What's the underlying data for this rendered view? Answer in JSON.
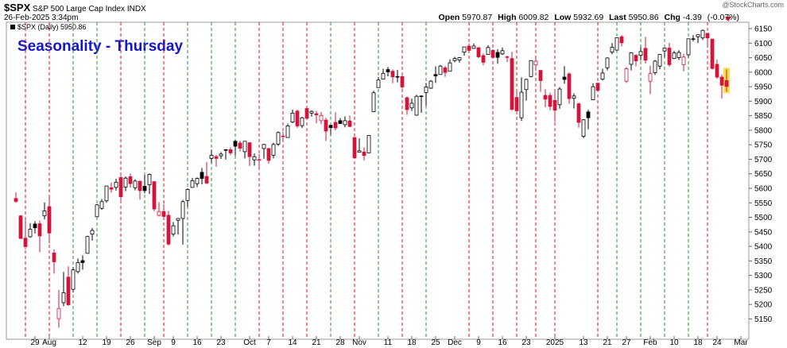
{
  "chart_data": {
    "type": "candlestick",
    "symbol": "$SPX",
    "name": "S&P 500 Large Cap Index",
    "exchange": "INDX",
    "date": "26-Feb-2025 3:34pm",
    "stats": [
      {
        "label": "Open",
        "value": 5970.87
      },
      {
        "label": "High",
        "value": 6009.82
      },
      {
        "label": "Low",
        "value": 5932.69
      },
      {
        "label": "Last",
        "value": 5950.86
      },
      {
        "label": "Chg",
        "value": -4.39
      }
    ],
    "change_pct": "(-0.07%)",
    "watermark": "@StockCharts.com",
    "legend_label": "$SPX (Daily) 5950.86",
    "title": "Seasonality - Thursday",
    "up_color": "#000000",
    "down_color": "#d2153c",
    "thursday_up_color": "#1f9a1f",
    "thursday_down_color": "#e01010",
    "grid": false,
    "categories": [
      null,
      null,
      null,
      null,
      "29",
      null,
      null,
      "Aug",
      null,
      null,
      null,
      null,
      null,
      null,
      "12",
      null,
      null,
      null,
      null,
      "19",
      null,
      null,
      null,
      null,
      "26",
      null,
      null,
      null,
      null,
      "Sep",
      null,
      null,
      null,
      "9",
      null,
      null,
      null,
      null,
      "16",
      null,
      null,
      null,
      null,
      "23",
      null,
      null,
      null,
      null,
      null,
      "Oct",
      null,
      null,
      null,
      "7",
      null,
      null,
      null,
      null,
      "14",
      null,
      null,
      null,
      null,
      "21",
      null,
      null,
      null,
      null,
      "28",
      null,
      null,
      null,
      "Nov",
      null,
      null,
      null,
      null,
      null,
      "11",
      null,
      null,
      null,
      null,
      "18",
      null,
      null,
      null,
      null,
      "25",
      null,
      null,
      null,
      "Dec",
      null,
      null,
      null,
      null,
      "9",
      null,
      null,
      null,
      null,
      "16",
      null,
      null,
      null,
      null,
      "23",
      null,
      null,
      null,
      null,
      null,
      "2025",
      null,
      null,
      null,
      null,
      null,
      "13",
      null,
      null,
      null,
      null,
      "21",
      null,
      null,
      null,
      "27",
      null,
      null,
      null,
      null,
      "Feb",
      null,
      null,
      null,
      null,
      "10",
      null,
      null,
      null,
      null,
      "18",
      null,
      null,
      null,
      "24",
      null,
      null,
      null,
      null,
      "Mar"
    ],
    "open": [
      5565,
      5505,
      5428,
      5433,
      5477,
      5478,
      5505,
      5537,
      5377,
      5151,
      5206,
      5294,
      5252,
      5313,
      5351,
      5376,
      5442,
      5502,
      5531,
      5557,
      5602,
      5603,
      5637,
      5604,
      5640,
      5602,
      5624,
      5607,
      5612,
      5623,
      5507,
      5520,
      5507,
      5442,
      5490,
      5496,
      5558,
      5603,
      5616,
      5655,
      5641,
      5703,
      5709,
      5712,
      5733,
      5733,
      5762,
      5756,
      5726,
      5757,
      5698,
      5698,
      5737,
      5737,
      5714,
      5752,
      5779,
      5775,
      5828,
      5866,
      5816,
      5875,
      5859,
      5857,
      5833,
      5835,
      5817,
      5827,
      5833,
      5819,
      5832,
      5775,
      5724,
      5725,
      5722,
      5864,
      5947,
      5976,
      6009,
      6003,
      5985,
      5985,
      5912,
      5877,
      5852,
      5918,
      5930,
      5945,
      5992,
      5992,
      6015,
      6003,
      6040,
      6042,
      6069,
      6090,
      6082,
      6084,
      6057,
      6061,
      6075,
      6068,
      6063,
      6053,
      6047,
      5913,
      5843,
      5940,
      5985,
      6025,
      6006,
      5920,
      5920,
      5903,
      5888,
      5983,
      5994,
      5910,
      5891,
      5779,
      5863,
      5905,
      5962,
      5976,
      6015,
      6069,
      6076,
      6122,
      5969,
      6027,
      6058,
      6058,
      6082,
      5969,
      5998,
      6021,
      6073,
      6083,
      6047,
      6050,
      6026,
      6060,
      6115,
      6122,
      6118,
      6134,
      6114,
      6027,
      5983,
      5970.87,
      null,
      null,
      null
    ],
    "high": [
      5586,
      5508,
      5492,
      5480,
      5487,
      5489,
      5551,
      5567,
      5390,
      5250,
      5312,
      5331,
      5328,
      5358,
      5369,
      5436,
      5463,
      5546,
      5563,
      5608,
      5620,
      5633,
      5643,
      5641,
      5651,
      5631,
      5627,
      5646,
      5651,
      5623,
      5552,
      5546,
      5522,
      5484,
      5497,
      5560,
      5600,
      5636,
      5637,
      5670,
      5690,
      5733,
      5715,
      5725,
      5735,
      5741,
      5767,
      5764,
      5763,
      5758,
      5720,
      5718,
      5753,
      5739,
      5757,
      5796,
      5795,
      5823,
      5871,
      5871,
      5846,
      5878,
      5869,
      5867,
      5863,
      5843,
      5817,
      5862,
      5842,
      5848,
      5850,
      5775,
      5772,
      5741,
      5783,
      5936,
      5983,
      6012,
      6018,
      6010,
      6008,
      5992,
      5916,
      5909,
      5922,
      5920,
      5963,
      5973,
      6020,
      6025,
      6021,
      6044,
      6053,
      6052,
      6087,
      6099,
      6099,
      6088,
      6065,
      6093,
      6079,
      6079,
      6085,
      6057,
      6070,
      5935,
      5982,
      5978,
      6041,
      6050,
      6007,
      5941,
      5929,
      5935,
      5949,
      6021,
      6000,
      5927,
      5896,
      5838,
      5871,
      5961,
      5964,
      6012,
      6051,
      6100,
      6119,
      6128,
      6018,
      6069,
      6062,
      6086,
      6121,
      6022,
      6042,
      6062,
      6084,
      6101,
      6073,
      6076,
      6063,
      6116,
      6128,
      6130,
      6147,
      6134,
      6115,
      6043,
      5992,
      6009.82,
      null,
      null,
      null
    ],
    "low": [
      5550,
      5426,
      5390,
      5430,
      5444,
      5380,
      5493,
      5410,
      5306,
      5120,
      5194,
      5195,
      5241,
      5306,
      5320,
      5376,
      5420,
      5501,
      5526,
      5550,
      5585,
      5592,
      5560,
      5590,
      5602,
      5593,
      5561,
      5583,
      5581,
      5521,
      5503,
      5493,
      5403,
      5434,
      5441,
      5406,
      5536,
      5602,
      5604,
      5614,
      5615,
      5687,
      5674,
      5701,
      5699,
      5714,
      5713,
      5727,
      5703,
      5677,
      5678,
      5674,
      5702,
      5684,
      5703,
      5746,
      5764,
      5775,
      5824,
      5808,
      5808,
      5840,
      5847,
      5824,
      5821,
      5762,
      5784,
      5799,
      5823,
      5810,
      5810,
      5703,
      5723,
      5696,
      5722,
      5864,
      5947,
      5976,
      5986,
      5962,
      5965,
      5943,
      5853,
      5866,
      5850,
      5860,
      5885,
      5942,
      5963,
      5993,
      5984,
      6003,
      6034,
      6033,
      6057,
      6073,
      6080,
      6048,
      6024,
      6060,
      6051,
      6029,
      6059,
      6035,
      5867,
      5866,
      5832,
      5902,
      5982,
      6004,
      5932,
      5879,
      5869,
      5829,
      5874,
      5960,
      5891,
      5875,
      5809,
      5773,
      5803,
      5904,
      5934,
      5971,
      6006,
      6062,
      6075,
      6089,
      5963,
      6006,
      6020,
      6041,
      6030,
      5924,
      5990,
      6010,
      6052,
      6019,
      6045,
      6042,
      6003,
      6051,
      6106,
      6100,
      6111,
      6085,
      6009,
      5977,
      5909,
      5932.69,
      null,
      null,
      null
    ],
    "close": [
      5555,
      5427,
      5399,
      5459,
      5464,
      5436,
      5522,
      5446,
      5347,
      5186,
      5240,
      5199,
      5319,
      5344,
      5344,
      5434,
      5455,
      5543,
      5554,
      5608,
      5597,
      5621,
      5571,
      5635,
      5616,
      5625,
      5592,
      5592,
      5648,
      5529,
      5520,
      5503,
      5408,
      5471,
      5496,
      5554,
      5596,
      5626,
      5634,
      5634,
      5618,
      5714,
      5703,
      5718,
      5732,
      5722,
      5745,
      5738,
      5762,
      5709,
      5709,
      5699,
      5751,
      5696,
      5751,
      5792,
      5780,
      5815,
      5859,
      5815,
      5843,
      5841,
      5865,
      5853,
      5851,
      5797,
      5809,
      5808,
      5823,
      5833,
      5813,
      5705,
      5729,
      5713,
      5782,
      5929,
      5973,
      5996,
      6001,
      5984,
      5985,
      5949,
      5871,
      5893,
      5917,
      5917,
      5949,
      5969,
      5987,
      6021,
      5999,
      6032,
      6047,
      6050,
      6087,
      6075,
      6090,
      6053,
      6034,
      6085,
      6051,
      6051,
      6074,
      6051,
      5872,
      5867,
      5931,
      5975,
      6040,
      6038,
      5971,
      5907,
      5882,
      5869,
      5942,
      5975,
      5909,
      5918,
      5827,
      5836,
      5843,
      5950,
      5937,
      5997,
      6049,
      6086,
      6119,
      6101,
      6012,
      6067,
      6039,
      6071,
      6041,
      5995,
      6038,
      6061,
      6083,
      6026,
      6066,
      6068,
      6052,
      6115,
      6115,
      6129,
      6144,
      6118,
      6013,
      5983,
      5955,
      5950.86,
      null,
      null,
      null
    ],
    "ylim": [
      5080,
      6172
    ],
    "yticks": [
      5150,
      5200,
      5250,
      5300,
      5350,
      5400,
      5450,
      5500,
      5550,
      5600,
      5650,
      5700,
      5750,
      5800,
      5850,
      5900,
      5950,
      6000,
      6050,
      6100,
      6150
    ]
  }
}
